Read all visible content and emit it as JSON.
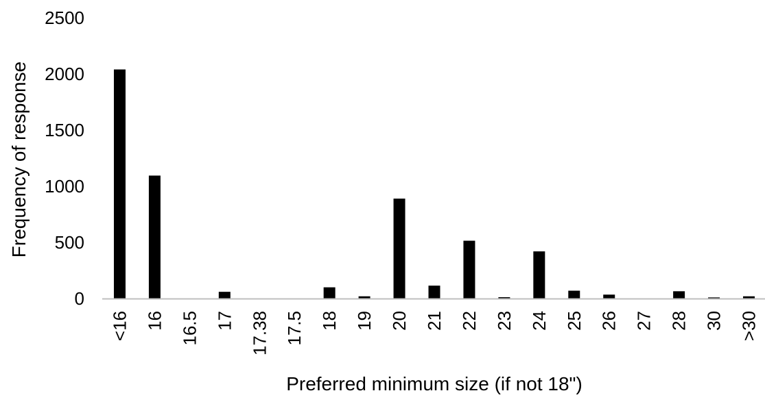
{
  "chart_data": {
    "type": "bar",
    "title": "",
    "xlabel": "Preferred minimum size (if not 18\")",
    "ylabel": "Frequency of response",
    "ylim": [
      0,
      2500
    ],
    "yticks": [
      "0",
      "500",
      "1000",
      "1500",
      "2000",
      "2500"
    ],
    "grid": false,
    "legend": "none",
    "bar_color": "#000000",
    "axis_color": "#bfbfbf",
    "categories": [
      "<16",
      "16",
      "16.5",
      "17",
      "17.38",
      "17.5",
      "18",
      "19",
      "20",
      "21",
      "22",
      "23",
      "24",
      "25",
      "26",
      "27",
      "28",
      "30",
      ">30"
    ],
    "values": [
      2040,
      1095,
      0,
      60,
      0,
      0,
      100,
      20,
      890,
      115,
      515,
      12,
      420,
      70,
      35,
      0,
      65,
      10,
      20
    ]
  }
}
